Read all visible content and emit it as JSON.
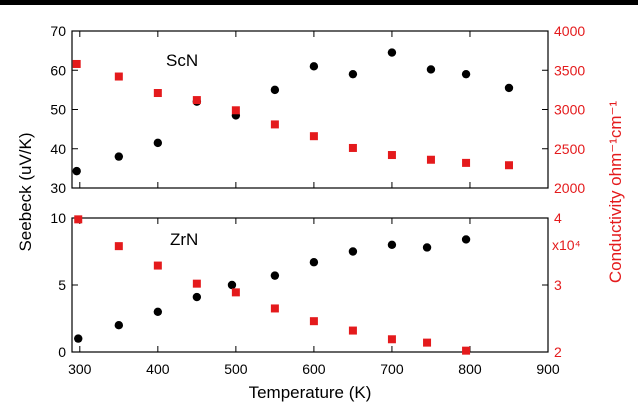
{
  "chart_data": [
    {
      "type": "scatter",
      "title": "ScN",
      "xlabel": "Temperature (K)",
      "ylabel": "Seebeck (uV/K)",
      "y2label": "Conductivity ohm⁻¹cm⁻¹",
      "xlim": [
        290,
        900
      ],
      "ylim": [
        30,
        70
      ],
      "y2lim": [
        2000,
        4000
      ],
      "yticks": [
        "30",
        "40",
        "50",
        "60",
        "70"
      ],
      "y2ticks": [
        "2000",
        "2500",
        "3000",
        "3500",
        "4000"
      ],
      "grid": false,
      "series": [
        {
          "axis": "left",
          "color": "#000000",
          "marker": "circle",
          "x": [
            296,
            350,
            400,
            450,
            500,
            550,
            600,
            650,
            700,
            750,
            795,
            850
          ],
          "y": [
            34.3,
            38.0,
            41.5,
            52.0,
            48.5,
            55.0,
            61.0,
            59.0,
            64.5,
            60.2,
            59.0,
            55.5
          ]
        },
        {
          "axis": "right",
          "color": "#e41a1c",
          "marker": "square",
          "x": [
            296,
            350,
            400,
            450,
            500,
            550,
            600,
            650,
            700,
            750,
            795,
            850
          ],
          "y": [
            3580,
            3420,
            3210,
            3120,
            2990,
            2810,
            2660,
            2510,
            2420,
            2360,
            2320,
            2290
          ]
        }
      ]
    },
    {
      "type": "scatter",
      "title": "ZrN",
      "xlabel": "Temperature (K)",
      "ylabel": "Seebeck (uV/K)",
      "y2label": "Conductivity ohm⁻¹cm⁻¹",
      "y2multiplier": "x10⁴",
      "xlim": [
        290,
        900
      ],
      "xticks": [
        "300",
        "400",
        "500",
        "600",
        "700",
        "800",
        "900"
      ],
      "ylim": [
        0,
        10
      ],
      "y2lim": [
        2,
        4
      ],
      "yticks": [
        "0",
        "5",
        "10"
      ],
      "y2ticks": [
        "2",
        "3",
        "4"
      ],
      "grid": false,
      "series": [
        {
          "axis": "left",
          "color": "#000000",
          "marker": "circle",
          "x": [
            298,
            350,
            400,
            450,
            495,
            550,
            600,
            650,
            700,
            745,
            795
          ],
          "y": [
            1.0,
            2.0,
            3.0,
            4.1,
            5.0,
            5.7,
            6.7,
            7.5,
            8.0,
            7.8,
            8.4
          ]
        },
        {
          "axis": "right",
          "color": "#e41a1c",
          "marker": "square",
          "x": [
            298,
            350,
            400,
            450,
            500,
            550,
            600,
            650,
            700,
            745,
            795
          ],
          "y": [
            3.98,
            3.58,
            3.29,
            3.02,
            2.89,
            2.65,
            2.46,
            2.32,
            2.19,
            2.14,
            2.02
          ]
        }
      ]
    }
  ]
}
